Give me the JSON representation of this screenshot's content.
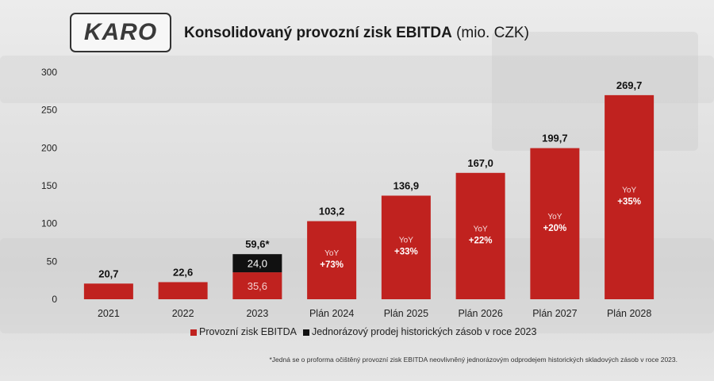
{
  "logo": {
    "text": "KARO"
  },
  "title": {
    "bold": "Konsolidovaný provozní zisk EBITDA",
    "unit": "(mio. CZK)"
  },
  "footnote": "*Jedná se o proforma očištěný provozní zisk EBITDA neovlivněný jednorázovým odprodejem historických skladových zásob v roce 2023.",
  "legend": {
    "items": [
      {
        "label": "Provozní zisk EBITDA",
        "color": "#c0221f"
      },
      {
        "label": "Jednorázový prodej historických zásob v roce 2023",
        "color": "#111111"
      }
    ]
  },
  "chart_data": {
    "type": "bar",
    "stacked": true,
    "categories": [
      "2021",
      "2022",
      "2023",
      "Plán 2024",
      "Plán 2025",
      "Plán 2026",
      "Plán 2027",
      "Plán 2028"
    ],
    "series": [
      {
        "name": "Provozní zisk EBITDA",
        "color": "#c0221f",
        "values": [
          20.7,
          22.6,
          35.6,
          103.2,
          136.9,
          167.0,
          199.7,
          269.7
        ]
      },
      {
        "name": "Jednorázový prodej historických zásob v roce 2023",
        "color": "#111111",
        "values": [
          0,
          0,
          24.0,
          0,
          0,
          0,
          0,
          0
        ]
      }
    ],
    "total_labels": [
      "20,7",
      "22,6",
      "59,6*",
      "103,2",
      "136,9",
      "167,0",
      "199,7",
      "269,7"
    ],
    "segment_labels": {
      "2023": {
        "red": "35,6",
        "black": "24,0"
      }
    },
    "yoy_caption": "YoY",
    "yoy_values": [
      "",
      "",
      "",
      "+73%",
      "+33%",
      "+22%",
      "+20%",
      "+35%"
    ],
    "yticks": [
      0,
      50,
      100,
      150,
      200,
      250,
      300
    ],
    "ylim": [
      0,
      300
    ],
    "grid": false,
    "legend_position": "bottom"
  }
}
